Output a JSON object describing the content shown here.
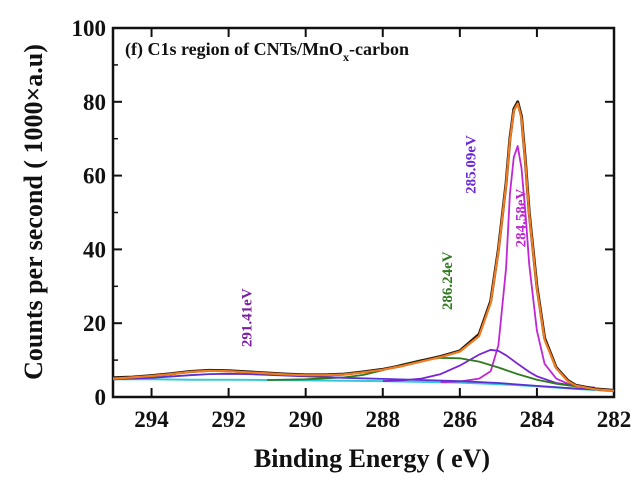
{
  "chart_data": {
    "type": "line",
    "title_prefix": "(f) C1s region of CNTs/MnO",
    "title_sub": "x",
    "title_suffix": "-carbon",
    "xlabel": "Binding Energy ( eV)",
    "ylabel": "Counts per second ( 1000×a.u)",
    "xlim": [
      295,
      282
    ],
    "ylim": [
      0,
      100
    ],
    "x_ticks": [
      294,
      292,
      290,
      288,
      286,
      284,
      282
    ],
    "y_ticks": [
      0,
      20,
      40,
      60,
      80,
      100
    ],
    "x_tick_labels": [
      "294",
      "292",
      "290",
      "288",
      "286",
      "284",
      "282"
    ],
    "y_tick_labels": [
      "0",
      "20",
      "40",
      "60",
      "80",
      "100"
    ],
    "series": [
      {
        "kind": "raw",
        "color": "#2b1a10",
        "x": [
          295.0,
          294.5,
          294.0,
          293.5,
          293.0,
          292.5,
          292.0,
          291.5,
          291.0,
          290.5,
          290.0,
          289.5,
          289.0,
          288.5,
          288.0,
          287.5,
          287.0,
          286.5,
          286.0,
          285.5,
          285.2,
          285.0,
          284.8,
          284.7,
          284.6,
          284.5,
          284.4,
          284.3,
          284.2,
          284.0,
          283.8,
          283.5,
          283.2,
          283.0,
          282.5,
          282.0
        ],
        "y": [
          5.2,
          5.4,
          5.8,
          6.3,
          6.9,
          7.2,
          7.1,
          6.8,
          6.5,
          6.2,
          6.0,
          6.0,
          6.2,
          6.8,
          7.5,
          8.5,
          9.8,
          11.0,
          12.5,
          17.0,
          26.0,
          40.0,
          58.0,
          70.0,
          78.0,
          80.0,
          76.0,
          64.0,
          50.0,
          30.0,
          16.0,
          8.0,
          4.5,
          3.2,
          2.2,
          1.8
        ]
      },
      {
        "kind": "envelope",
        "color": "#f07c22",
        "x": [
          295.0,
          294.5,
          294.0,
          293.5,
          293.0,
          292.5,
          292.0,
          291.5,
          291.0,
          290.5,
          290.0,
          289.5,
          289.0,
          288.5,
          288.0,
          287.5,
          287.0,
          286.5,
          286.0,
          285.5,
          285.2,
          285.0,
          284.8,
          284.7,
          284.6,
          284.5,
          284.4,
          284.3,
          284.2,
          284.0,
          283.8,
          283.5,
          283.2,
          283.0,
          282.5,
          282.0
        ],
        "y": [
          5.0,
          5.3,
          5.7,
          6.2,
          6.8,
          7.1,
          7.0,
          6.7,
          6.4,
          6.1,
          5.9,
          5.9,
          6.1,
          6.7,
          7.4,
          8.4,
          9.6,
          10.8,
          12.3,
          16.5,
          25.5,
          39.5,
          57.5,
          69.5,
          77.5,
          79.5,
          75.5,
          63.5,
          49.5,
          29.5,
          15.5,
          7.8,
          4.3,
          3.1,
          2.1,
          1.7
        ]
      },
      {
        "kind": "component",
        "color": "#c026d3",
        "x": [
          286.5,
          286.0,
          285.5,
          285.2,
          285.0,
          284.8,
          284.7,
          284.6,
          284.5,
          284.4,
          284.3,
          284.2,
          284.0,
          283.8,
          283.5,
          283.2,
          283.0,
          282.5
        ],
        "y": [
          4.0,
          4.2,
          5.0,
          7.0,
          14.0,
          35.0,
          55.0,
          65.0,
          68.0,
          62.0,
          50.0,
          36.0,
          18.0,
          9.0,
          5.0,
          3.6,
          3.0,
          2.5
        ]
      },
      {
        "kind": "component",
        "color": "#7a22d6",
        "x": [
          288.0,
          287.5,
          287.0,
          286.5,
          286.0,
          285.5,
          285.2,
          285.0,
          284.8,
          284.5,
          284.2,
          284.0,
          283.5,
          283.0,
          282.5
        ],
        "y": [
          4.3,
          4.5,
          5.0,
          6.2,
          8.5,
          11.5,
          12.8,
          12.5,
          11.3,
          9.0,
          6.8,
          5.6,
          3.8,
          3.0,
          2.5
        ]
      },
      {
        "kind": "component",
        "color": "#2f7a1f",
        "x": [
          291.0,
          290.0,
          289.0,
          288.5,
          288.0,
          287.5,
          287.0,
          286.5,
          286.0,
          285.5,
          285.0,
          284.5,
          284.0,
          283.5,
          283.0,
          282.5
        ],
        "y": [
          4.6,
          4.8,
          5.3,
          6.0,
          7.3,
          8.8,
          10.0,
          10.6,
          10.5,
          9.6,
          8.0,
          6.2,
          4.7,
          3.6,
          2.9,
          2.4
        ]
      },
      {
        "kind": "component",
        "color": "#5b2fd0",
        "x": [
          295.0,
          294.0,
          293.0,
          292.5,
          292.0,
          291.5,
          291.0,
          290.5,
          290.0,
          289.0,
          288.0,
          287.0,
          286.0,
          285.0,
          284.0,
          283.0,
          282.0
        ],
        "y": [
          4.8,
          5.2,
          5.9,
          6.2,
          6.3,
          6.2,
          6.0,
          5.8,
          5.6,
          5.2,
          4.9,
          4.6,
          4.3,
          3.8,
          3.0,
          2.3,
          1.8
        ]
      },
      {
        "kind": "background",
        "color": "#36c9d6",
        "x": [
          295.0,
          294.0,
          293.0,
          292.0,
          291.0,
          290.0,
          289.0,
          288.0,
          287.0,
          286.0,
          285.0,
          284.0,
          283.0,
          282.0
        ],
        "y": [
          4.8,
          4.8,
          4.7,
          4.7,
          4.6,
          4.5,
          4.4,
          4.3,
          4.1,
          3.9,
          3.5,
          2.9,
          2.2,
          1.6
        ]
      }
    ],
    "annotations": [
      {
        "text": "291.41eV",
        "x": 291.4,
        "y": 21.5,
        "color": "#7a1fa2"
      },
      {
        "text": "286.24eV",
        "x": 286.2,
        "y": 31.5,
        "color": "#2f7a1f"
      },
      {
        "text": "285.09eV",
        "x": 285.6,
        "y": 63.0,
        "color": "#6a28d8"
      },
      {
        "text": "284.58eV",
        "x": 284.3,
        "y": 48.5,
        "color": "#c026d3"
      }
    ]
  }
}
